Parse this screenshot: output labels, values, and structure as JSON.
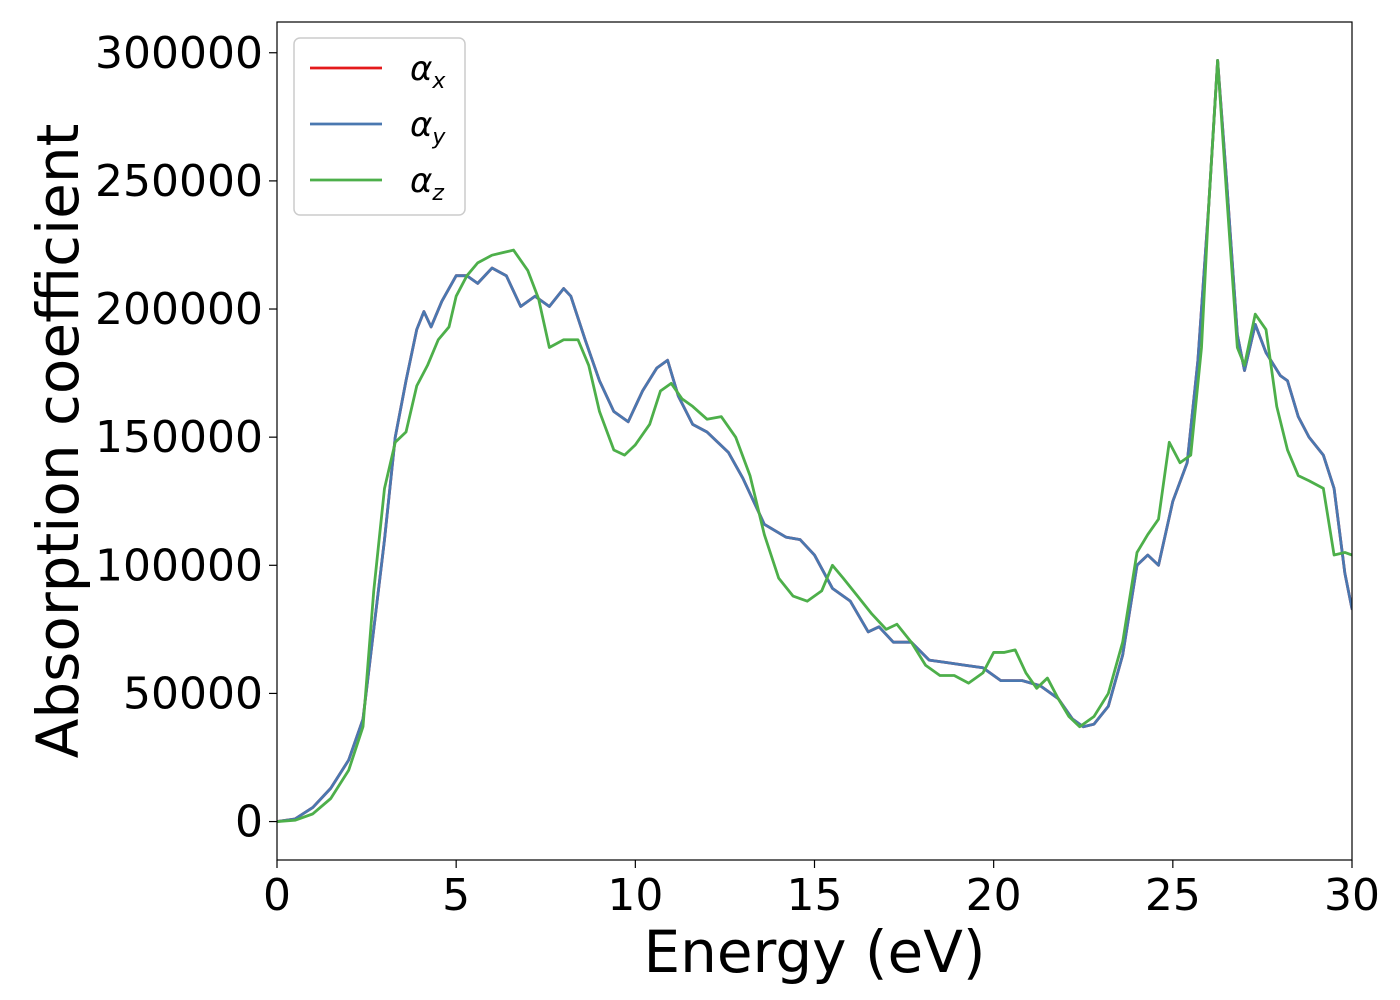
{
  "chart_data": {
    "type": "line",
    "xlabel": "Energy (eV)",
    "ylabel": "Absorption coefficient",
    "xlim": [
      0,
      30
    ],
    "ylim": [
      -15000,
      312000
    ],
    "xticks": [
      0,
      5,
      10,
      15,
      20,
      25,
      30
    ],
    "xtick_labels": [
      "0",
      "5",
      "10",
      "15",
      "20",
      "25",
      "30"
    ],
    "yticks": [
      0,
      50000,
      100000,
      150000,
      200000,
      250000,
      300000
    ],
    "ytick_labels": [
      "0",
      "50000",
      "100000",
      "150000",
      "200000",
      "250000",
      "300000"
    ],
    "grid": false,
    "legend_position": "top-left",
    "series": [
      {
        "name": "α",
        "name_sub": "x",
        "color": "#e41a1c",
        "x": [
          0,
          0.5,
          1,
          1.5,
          2,
          2.4,
          2.7,
          3,
          3.3,
          3.6,
          3.9,
          4.1,
          4.3,
          4.6,
          5,
          5.3,
          5.6,
          6,
          6.4,
          6.8,
          7.2,
          7.6,
          8,
          8.2,
          8.6,
          9,
          9.4,
          9.8,
          10.2,
          10.6,
          10.9,
          11.2,
          11.6,
          12,
          12.6,
          13,
          13.6,
          14.2,
          14.6,
          15,
          15.5,
          16,
          16.5,
          16.8,
          17.2,
          17.7,
          18.2,
          18.7,
          19.2,
          19.7,
          20.2,
          20.8,
          21.3,
          21.8,
          22.2,
          22.5,
          22.8,
          23.2,
          23.6,
          24,
          24.3,
          24.6,
          25,
          25.4,
          25.7,
          26,
          26.25,
          26.5,
          26.8,
          27,
          27.3,
          27.6,
          28,
          28.2,
          28.5,
          28.8,
          29.2,
          29.5,
          29.8,
          30
        ],
        "y": [
          0,
          1000,
          5500,
          13000,
          24000,
          40000,
          75000,
          110000,
          150000,
          172000,
          192000,
          199000,
          193000,
          203000,
          213000,
          213000,
          210000,
          216000,
          213000,
          201000,
          205000,
          201000,
          208000,
          205000,
          188000,
          172000,
          160000,
          156000,
          168000,
          177000,
          180000,
          166000,
          155000,
          152000,
          144000,
          134000,
          116000,
          111000,
          110000,
          104000,
          91000,
          86000,
          74000,
          76000,
          70000,
          70000,
          63000,
          62000,
          61000,
          60000,
          55000,
          55000,
          53000,
          48000,
          40000,
          37000,
          38000,
          45000,
          65000,
          100000,
          104000,
          100000,
          125000,
          140000,
          180000,
          240000,
          297000,
          250000,
          190000,
          176000,
          194000,
          183000,
          174000,
          172000,
          158000,
          150000,
          143000,
          130000,
          97000,
          83000
        ]
      },
      {
        "name": "α",
        "name_sub": "y",
        "color": "#4a78b0",
        "x": [
          0,
          0.5,
          1,
          1.5,
          2,
          2.4,
          2.7,
          3,
          3.3,
          3.6,
          3.9,
          4.1,
          4.3,
          4.6,
          5,
          5.3,
          5.6,
          6,
          6.4,
          6.8,
          7.2,
          7.6,
          8,
          8.2,
          8.6,
          9,
          9.4,
          9.8,
          10.2,
          10.6,
          10.9,
          11.2,
          11.6,
          12,
          12.6,
          13,
          13.6,
          14.2,
          14.6,
          15,
          15.5,
          16,
          16.5,
          16.8,
          17.2,
          17.7,
          18.2,
          18.7,
          19.2,
          19.7,
          20.2,
          20.8,
          21.3,
          21.8,
          22.2,
          22.5,
          22.8,
          23.2,
          23.6,
          24,
          24.3,
          24.6,
          25,
          25.4,
          25.7,
          26,
          26.25,
          26.5,
          26.8,
          27,
          27.3,
          27.6,
          28,
          28.2,
          28.5,
          28.8,
          29.2,
          29.5,
          29.8,
          30
        ],
        "y": [
          0,
          1000,
          5500,
          13000,
          24000,
          40000,
          75000,
          110000,
          150000,
          172000,
          192000,
          199000,
          193000,
          203000,
          213000,
          213000,
          210000,
          216000,
          213000,
          201000,
          205000,
          201000,
          208000,
          205000,
          188000,
          172000,
          160000,
          156000,
          168000,
          177000,
          180000,
          166000,
          155000,
          152000,
          144000,
          134000,
          116000,
          111000,
          110000,
          104000,
          91000,
          86000,
          74000,
          76000,
          70000,
          70000,
          63000,
          62000,
          61000,
          60000,
          55000,
          55000,
          53000,
          48000,
          40000,
          37000,
          38000,
          45000,
          65000,
          100000,
          104000,
          100000,
          125000,
          140000,
          180000,
          240000,
          297000,
          250000,
          190000,
          176000,
          194000,
          183000,
          174000,
          172000,
          158000,
          150000,
          143000,
          130000,
          97000,
          83000
        ]
      },
      {
        "name": "α",
        "name_sub": "z",
        "color": "#4daf4a",
        "x": [
          0,
          0.5,
          1,
          1.5,
          2,
          2.4,
          2.7,
          3,
          3.3,
          3.6,
          3.9,
          4.2,
          4.5,
          4.8,
          5,
          5.3,
          5.6,
          6,
          6.3,
          6.6,
          7,
          7.3,
          7.6,
          8,
          8.4,
          8.7,
          9,
          9.4,
          9.7,
          10,
          10.4,
          10.7,
          11,
          11.3,
          11.6,
          12,
          12.4,
          12.8,
          13.2,
          13.6,
          14,
          14.4,
          14.8,
          15.2,
          15.5,
          15.8,
          16.2,
          16.6,
          17,
          17.3,
          17.7,
          18.1,
          18.5,
          18.9,
          19.3,
          19.7,
          20,
          20.3,
          20.6,
          20.9,
          21.2,
          21.5,
          21.8,
          22.1,
          22.4,
          22.8,
          23.2,
          23.6,
          24,
          24.3,
          24.6,
          24.9,
          25.2,
          25.5,
          25.8,
          26,
          26.25,
          26.5,
          26.8,
          27,
          27.3,
          27.6,
          27.9,
          28.2,
          28.5,
          28.8,
          29.2,
          29.5,
          29.8,
          30
        ],
        "y": [
          0,
          500,
          3000,
          9000,
          20000,
          37000,
          90000,
          130000,
          148000,
          152000,
          170000,
          178000,
          188000,
          193000,
          205000,
          213000,
          218000,
          221000,
          222000,
          223000,
          215000,
          204000,
          185000,
          188000,
          188000,
          178000,
          160000,
          145000,
          143000,
          147000,
          155000,
          168000,
          171000,
          165000,
          162000,
          157000,
          158000,
          150000,
          135000,
          112000,
          95000,
          88000,
          86000,
          90000,
          100000,
          95000,
          88000,
          81000,
          75000,
          77000,
          70000,
          61000,
          57000,
          57000,
          54000,
          58000,
          66000,
          66000,
          67000,
          58000,
          52000,
          56000,
          48000,
          41000,
          37000,
          41000,
          50000,
          70000,
          105000,
          112000,
          118000,
          148000,
          140000,
          143000,
          185000,
          240000,
          297000,
          245000,
          185000,
          178000,
          198000,
          192000,
          162000,
          145000,
          135000,
          133000,
          130000,
          104000,
          105000,
          104000
        ]
      }
    ]
  }
}
